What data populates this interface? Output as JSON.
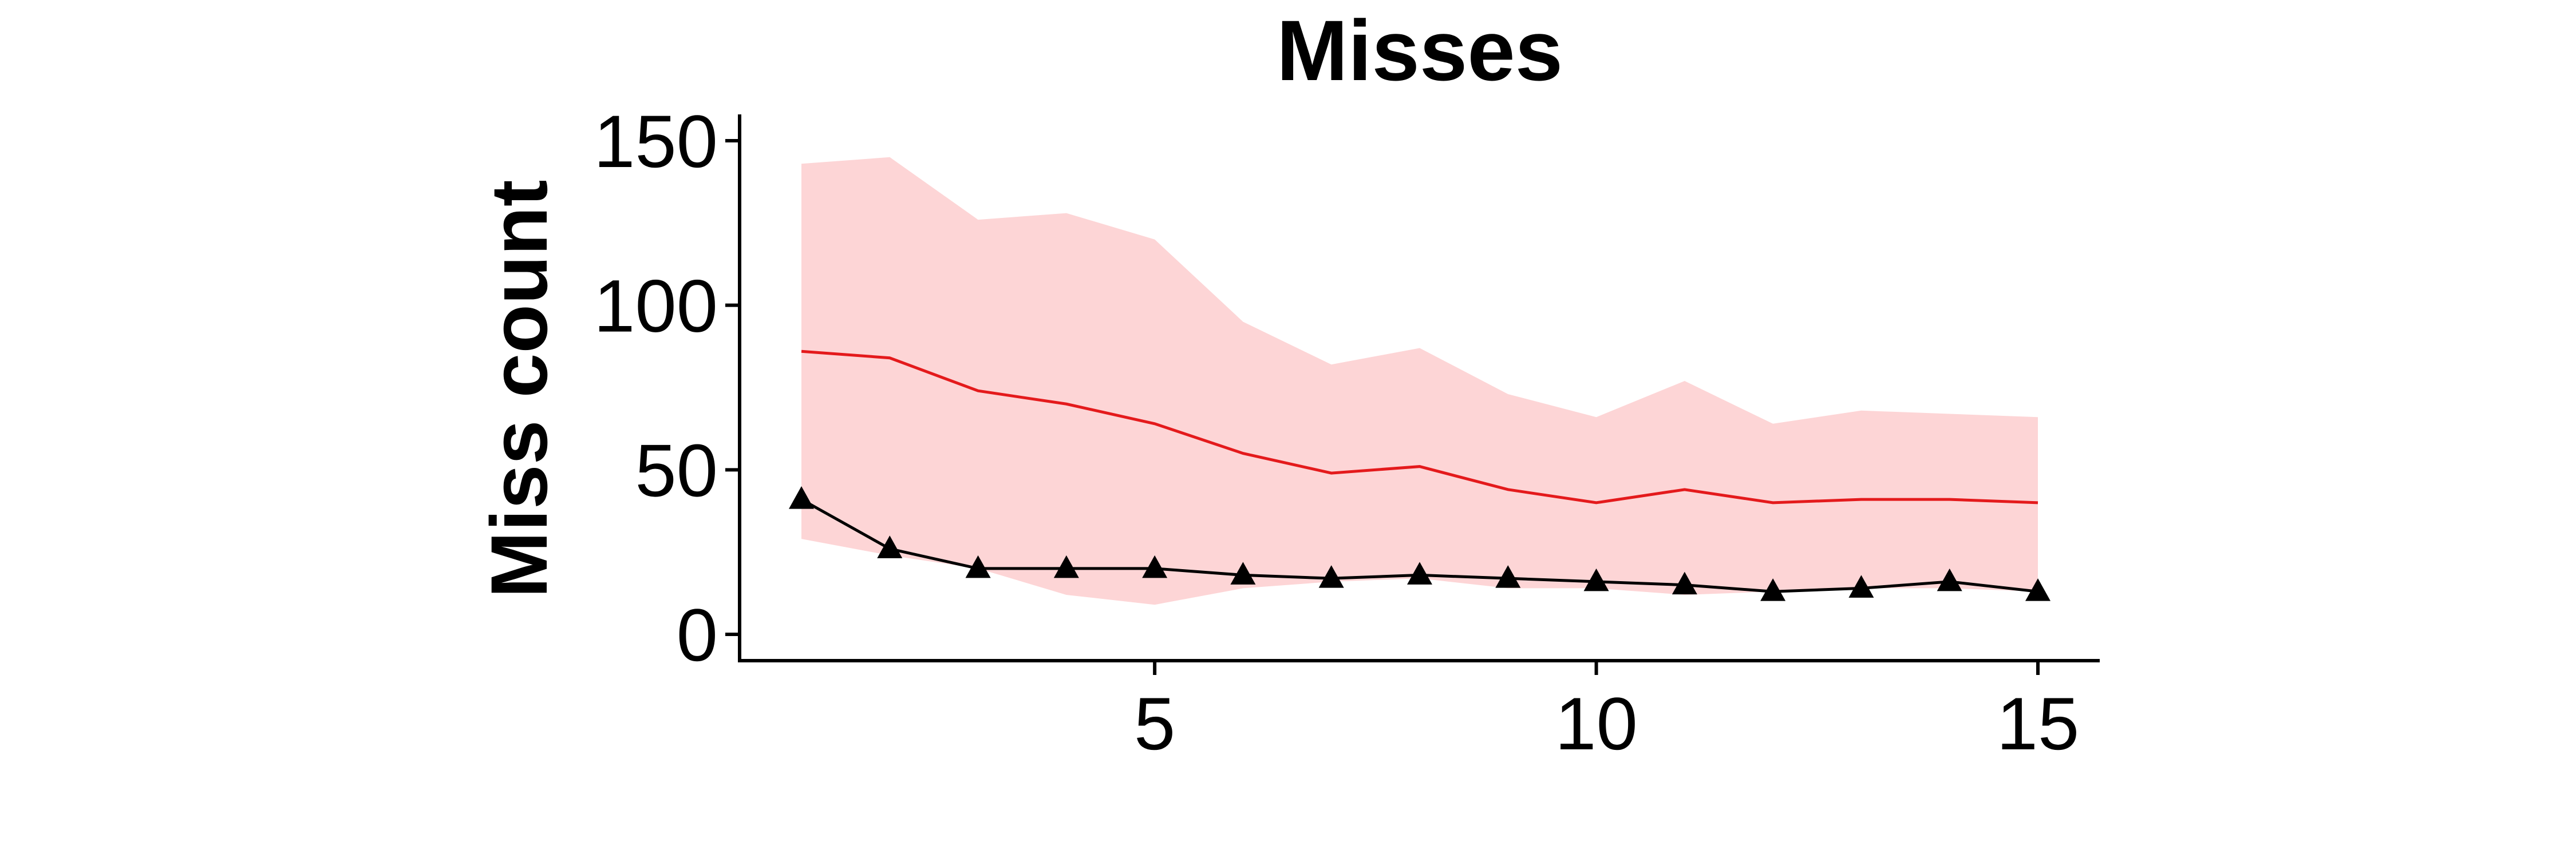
{
  "chart_data": {
    "type": "line",
    "title": "Misses",
    "xlabel": "",
    "ylabel": "Miss count",
    "xlim": [
      0.3,
      15.7
    ],
    "ylim": [
      -8,
      158
    ],
    "x_ticks": [
      5,
      10,
      15
    ],
    "y_ticks": [
      0,
      50,
      100,
      150
    ],
    "x": [
      1,
      2,
      3,
      4,
      5,
      6,
      7,
      8,
      9,
      10,
      11,
      12,
      13,
      14,
      15
    ],
    "band": {
      "color": "#fdd5d6",
      "upper": [
        143,
        145,
        126,
        128,
        120,
        95,
        82,
        87,
        73,
        66,
        77,
        64,
        68,
        67,
        66
      ],
      "lower": [
        29,
        24,
        20,
        12,
        9,
        14,
        16,
        17,
        14,
        14,
        12,
        13,
        14,
        14,
        13
      ]
    },
    "series": [
      {
        "color": "#e41a1c",
        "marker": "none",
        "values": [
          86,
          84,
          74,
          70,
          64,
          55,
          49,
          51,
          44,
          40,
          44,
          40,
          41,
          41,
          40
        ]
      },
      {
        "color": "#000000",
        "marker": "triangle",
        "values": [
          41,
          26,
          20,
          20,
          20,
          18,
          17,
          18,
          17,
          16,
          15,
          13,
          14,
          16,
          13
        ]
      }
    ],
    "grid": false,
    "legend": "none"
  }
}
